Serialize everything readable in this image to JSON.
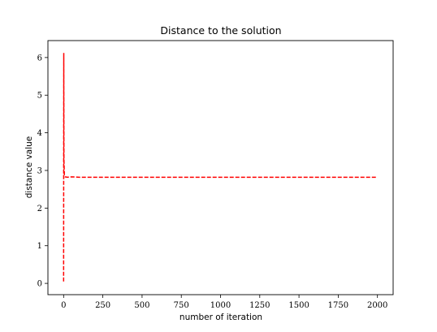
{
  "chart_data": {
    "type": "line",
    "title": "Distance to the solution",
    "xlabel": "number of iteration",
    "ylabel": "distance value",
    "xlim": [
      -100,
      2100
    ],
    "ylim": [
      -0.3,
      6.45
    ],
    "xticks": [
      0,
      250,
      500,
      750,
      1000,
      1250,
      1500,
      1750,
      2000
    ],
    "yticks": [
      0,
      1,
      2,
      3,
      4,
      5,
      6
    ],
    "grid": false,
    "legend": "none",
    "series": [
      {
        "color": "#ff0000",
        "style": "dashed",
        "x": [
          0,
          1,
          2,
          5,
          10,
          25,
          50,
          100,
          250,
          500,
          750,
          1000,
          1250,
          1500,
          1750,
          2000
        ],
        "y": [
          0.05,
          6.12,
          3.3,
          2.85,
          2.83,
          2.82,
          2.83,
          2.82,
          2.82,
          2.82,
          2.82,
          2.82,
          2.82,
          2.82,
          2.82,
          2.82
        ]
      }
    ]
  }
}
